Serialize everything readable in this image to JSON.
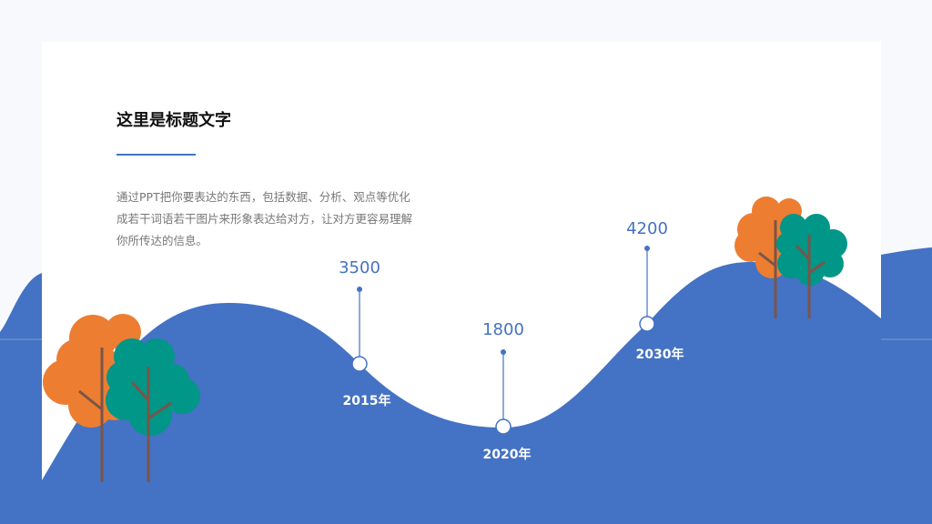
{
  "slide": {
    "title": "这里是标题文字",
    "body": "通过PPT把你要表达的东西，包括数据、分析、观点等优化成若干词语若干图片来形象表达给对方，让对方更容易理解你所传达的信息。"
  },
  "timeline": [
    {
      "year": "2015年",
      "value": "3500"
    },
    {
      "year": "2020年",
      "value": "1800"
    },
    {
      "year": "2030年",
      "value": "4200"
    }
  ],
  "colors": {
    "accent": "#4472c4",
    "orange_tree": "#ed7d31",
    "teal_tree": "#009688",
    "trunk": "#7a5548"
  }
}
